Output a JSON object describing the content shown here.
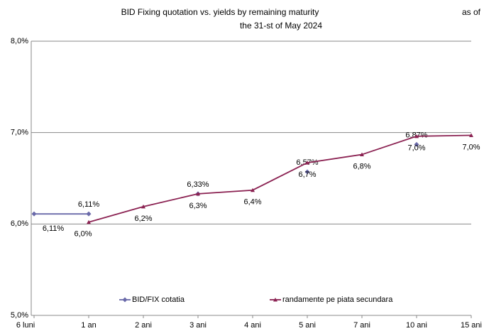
{
  "chart_data": {
    "type": "line",
    "title": "BID Fixing quotation vs. yields by remaining maturity",
    "title_right": "as of",
    "subtitle": "the 31-st of May 2024",
    "categories": [
      "6 luni",
      "1 an",
      "2 ani",
      "3 ani",
      "4 ani",
      "5 ani",
      "7 ani",
      "10 ani",
      "15 ani"
    ],
    "series": [
      {
        "name": "BID/FIX cotatia",
        "color": "#6a6aaa",
        "values": [
          6.11,
          6.11,
          null,
          6.33,
          null,
          6.57,
          null,
          6.87,
          null
        ],
        "value_labels": [
          "6,11%",
          "6,11%",
          null,
          "6,33%",
          null,
          "6,57%",
          null,
          "6,87%",
          null
        ]
      },
      {
        "name": "randamente pe piata secundara",
        "color": "#8b2252",
        "values": [
          null,
          6.02,
          6.19,
          6.33,
          6.37,
          6.67,
          6.76,
          6.96,
          6.97
        ],
        "value_labels": [
          null,
          "6,0%",
          "6,2%",
          "6,3%",
          "6,4%",
          "6,7%",
          "6,8%",
          "7,0%",
          "7,0%"
        ]
      }
    ],
    "ylim": [
      5,
      8
    ],
    "yticks": [
      {
        "value": 5,
        "label": "5,0%"
      },
      {
        "value": 6,
        "label": "6,0%"
      },
      {
        "value": 7,
        "label": "7,0%"
      },
      {
        "value": 8,
        "label": "8,0%"
      }
    ],
    "grid": true
  }
}
